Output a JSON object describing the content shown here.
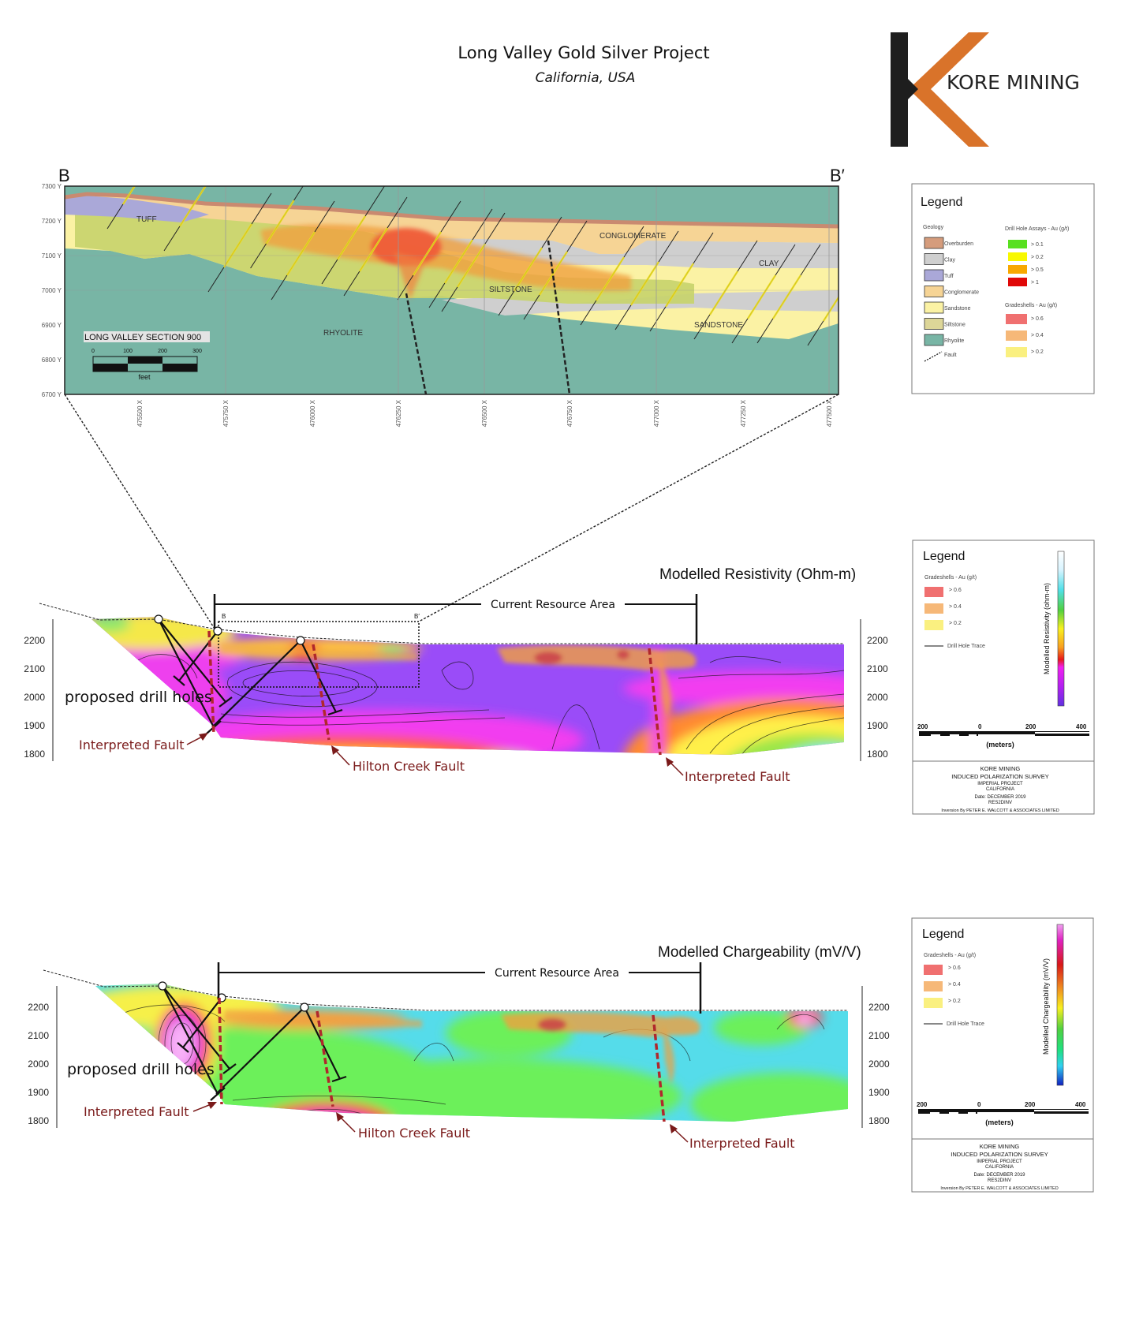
{
  "header": {
    "title": "Long Valley Gold Silver Project",
    "subtitle": "California, USA"
  },
  "logo": {
    "text": "KORE MINING",
    "colors": {
      "bar": "#1e1e1e",
      "chevron": "#d9732a"
    }
  },
  "section_b": {
    "start_label": "B",
    "end_label": "B′",
    "section_name": "LONG VALLEY SECTION 900",
    "scale_ticks": [
      "0",
      "100",
      "200",
      "300"
    ],
    "scale_unit": "feet",
    "y_ticks": [
      "7300 Y",
      "7200 Y",
      "7100 Y",
      "7000 Y",
      "6900 Y",
      "6800 Y",
      "6700 Y"
    ],
    "x_ticks": [
      "475500 X",
      "475750 X",
      "476000 X",
      "476250 X",
      "476500 X",
      "476750 X",
      "477000 X",
      "477250 X",
      "477500 X"
    ],
    "unit_labels": {
      "tuff": "TUFF",
      "conglomerate": "CONGLOMERATE",
      "clay": "CLAY",
      "siltstone": "SILTSTONE",
      "sandstone": "SANDSTONE",
      "rhyolite": "RHYOLITE"
    }
  },
  "legend_geology": {
    "title": "Legend",
    "geology_header": "Geology",
    "items": [
      {
        "label": "Overburden",
        "color": "#d59c7c"
      },
      {
        "label": "Clay",
        "color": "#cfcfcf"
      },
      {
        "label": "Tuff",
        "color": "#aaa8d8"
      },
      {
        "label": "Conglomerate",
        "color": "#f6d495"
      },
      {
        "label": "Sandstone",
        "color": "#fbf2a4"
      },
      {
        "label": "Siltstone",
        "color": "#ddd698"
      },
      {
        "label": "Rhyolite",
        "color": "#78b5a5"
      }
    ],
    "fault_label": "Fault",
    "assays_header": "Drill Hole Assays - Au (g/t)",
    "assays": [
      {
        "label": "> 0.1",
        "color": "#58e020"
      },
      {
        "label": "> 0.2",
        "color": "#f8f800"
      },
      {
        "label": "> 0.5",
        "color": "#f8a800"
      },
      {
        "label": "> 1",
        "color": "#e00808"
      }
    ],
    "gradeshell_header": "Gradeshells - Au (g/t)",
    "gradeshells": [
      {
        "label": "> 0.6",
        "color": "#f07070"
      },
      {
        "label": "> 0.4",
        "color": "#f6b878"
      },
      {
        "label": "> 0.2",
        "color": "#faf080"
      }
    ]
  },
  "resistivity": {
    "title": "Modelled Resistivity (Ohm-m)",
    "resource_area": "Current Resource Area",
    "box_start": "B",
    "box_end": "B′",
    "y_ticks": [
      "2200",
      "2100",
      "2000",
      "1900",
      "1800"
    ],
    "proposed_label": "proposed drill holes",
    "fault_left": "Interpreted Fault",
    "hilton": "Hilton Creek Fault",
    "fault_right": "Interpreted Fault"
  },
  "chargeability": {
    "title": "Modelled Chargeability (mV/V)",
    "resource_area": "Current Resource Area",
    "y_ticks": [
      "2200",
      "2100",
      "2000",
      "1900",
      "1800"
    ],
    "proposed_label": "proposed drill holes",
    "fault_left": "Interpreted Fault",
    "hilton": "Hilton Creek Fault",
    "fault_right": "Interpreted Fault"
  },
  "legend_resistivity": {
    "title": "Legend",
    "gradeshell_header": "Gradeshells - Au (g/t)",
    "gradeshells": [
      {
        "label": "> 0.6",
        "color": "#f07070"
      },
      {
        "label": "> 0.4",
        "color": "#f6b878"
      },
      {
        "label": "> 0.2",
        "color": "#faf080"
      }
    ],
    "trace_label": "Drill Hole Trace",
    "colorbar_label": "Modelled Resistivity (ohm-m)",
    "scale_ticks": [
      "200",
      "0",
      "200",
      "400"
    ],
    "scale_unit": "(meters)",
    "footer": [
      "KORE MINING",
      "INDUCED POLARIZATION SURVEY",
      "IMPERIAL PROJECT",
      "CALIFORNIA",
      "Date: DECEMBER 2019",
      "RES2DINV",
      "Inversion By PETER E. WALCOTT & ASSOCIATES LIMITED"
    ]
  },
  "legend_chargeability": {
    "title": "Legend",
    "gradeshell_header": "Gradeshells - Au (g/t)",
    "gradeshells": [
      {
        "label": "> 0.6",
        "color": "#f07070"
      },
      {
        "label": "> 0.4",
        "color": "#f6b878"
      },
      {
        "label": "> 0.2",
        "color": "#faf080"
      }
    ],
    "trace_label": "Drill Hole Trace",
    "colorbar_label": "Modelled Chargeability (mV/V)",
    "scale_ticks": [
      "200",
      "0",
      "200",
      "400"
    ],
    "scale_unit": "(meters)",
    "footer": [
      "KORE MINING",
      "INDUCED POLARIZATION SURVEY",
      "IMPERIAL PROJECT",
      "CALIFORNIA",
      "Date: DECEMBER 2019",
      "RES2DINV",
      "Inversion By PETER E. WALCOTT & ASSOCIATES LIMITED"
    ]
  }
}
